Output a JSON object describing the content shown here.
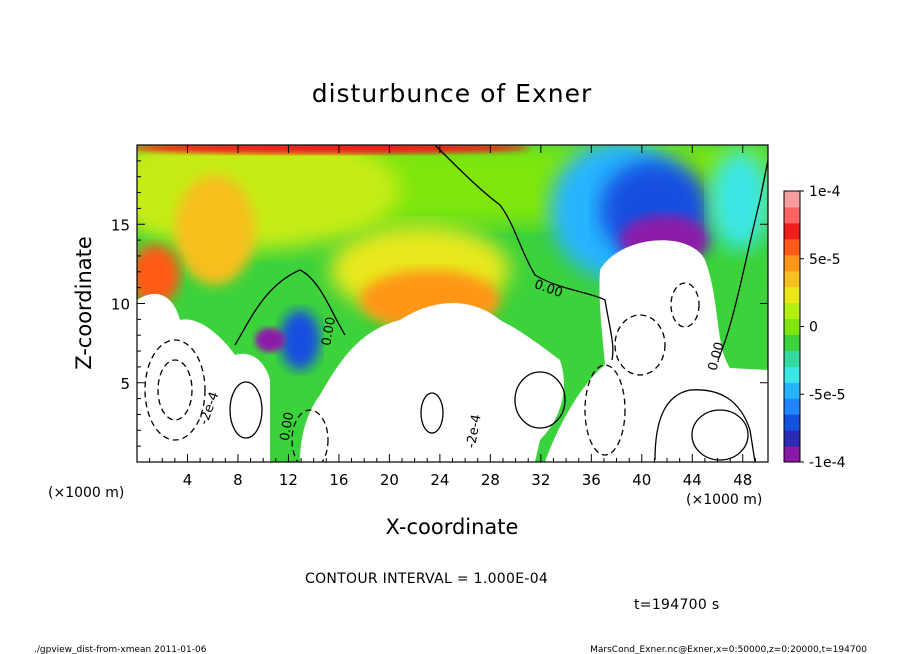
{
  "title": "disturbunce of Exner",
  "chart_data": {
    "type": "heatmap",
    "title": "disturbunce of Exner",
    "xlabel": "X-coordinate",
    "ylabel": "Z-coordinate",
    "x_scale_note": "(×1000 m)",
    "y_scale_note": "(×1000 m)",
    "xlim": [
      0,
      50
    ],
    "ylim": [
      0,
      20
    ],
    "x_ticks": [
      4,
      8,
      12,
      16,
      20,
      24,
      28,
      32,
      36,
      40,
      44,
      48
    ],
    "y_ticks": [
      5,
      10,
      15
    ],
    "colorbar": {
      "range": [
        -0.0001,
        0.0001
      ],
      "ticks": [
        {
          "value": 0.0001,
          "label": "1e-4"
        },
        {
          "value": 5e-05,
          "label": "5e-5"
        },
        {
          "value": 0,
          "label": "0"
        },
        {
          "value": -5e-05,
          "label": "-5e-5"
        },
        {
          "value": -0.0001,
          "label": "-1e-4"
        }
      ],
      "colors": [
        "#8c1aa8",
        "#2a2ab4",
        "#1450e0",
        "#1f86ff",
        "#26b4ff",
        "#3be6e6",
        "#36d9a0",
        "#3cd23c",
        "#7ee60e",
        "#b4ed10",
        "#e8e81a",
        "#f7bf1f",
        "#ff9619",
        "#ff5a18",
        "#f01e1e",
        "#ff6464",
        "#f5a0a0"
      ]
    },
    "contour_labels": [
      {
        "text": "0.00",
        "x": 32.5,
        "z": 10.7,
        "rotate": 20
      },
      {
        "text": "0.00",
        "x": 15.5,
        "z": 8.2,
        "rotate": -80
      },
      {
        "text": "0.00",
        "x": 12.2,
        "z": 2.2,
        "rotate": -80
      },
      {
        "text": "0.00",
        "x": 46.2,
        "z": 6.6,
        "rotate": -75
      },
      {
        "text": "-2e-4",
        "x": 6.0,
        "z": 3.3,
        "rotate": -70
      },
      {
        "text": "-2e-4",
        "x": 27.0,
        "z": 1.9,
        "rotate": -80
      }
    ],
    "contour_interval_text": "CONTOUR INTERVAL = 1.000E-04",
    "time_text": "t=194700 s"
  },
  "footer": {
    "left": "./gpview_dist-from-xmean  2011-01-06",
    "right": "MarsCond_Exner.nc@Exner,x=0:50000,z=0:20000,t=194700"
  }
}
